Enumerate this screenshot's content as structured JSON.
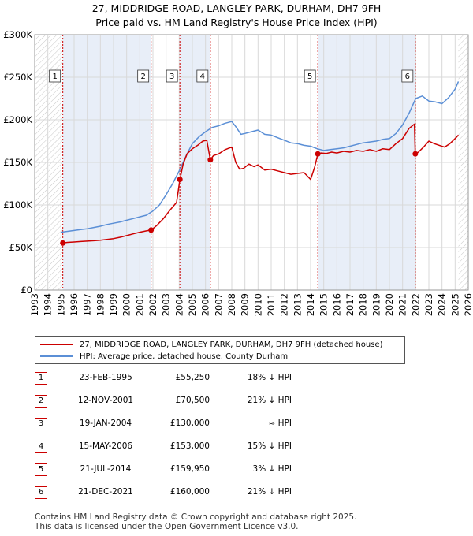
{
  "header": {
    "title_line1": "27, MIDDRIDGE ROAD, LANGLEY PARK, DURHAM, DH7 9FH",
    "title_line2": "Price paid vs. HM Land Registry's House Price Index (HPI)"
  },
  "colors": {
    "price_paid": "#cc0000",
    "hpi": "#5b8fd6",
    "shade": "#e8eef8",
    "marker_line": "#cc0000",
    "grid": "#d9d9d9"
  },
  "chart_data": {
    "type": "line",
    "title": "27, MIDDRIDGE ROAD, LANGLEY PARK, DURHAM, DH7 9FH — Price paid vs. HM Land Registry's House Price Index (HPI)",
    "xlim": [
      1993,
      2026
    ],
    "ylim": [
      0,
      300000
    ],
    "x_ticks": [
      1993,
      1994,
      1995,
      1996,
      1997,
      1998,
      1999,
      2000,
      2001,
      2002,
      2003,
      2004,
      2005,
      2006,
      2007,
      2008,
      2009,
      2010,
      2011,
      2012,
      2013,
      2014,
      2015,
      2016,
      2017,
      2018,
      2019,
      2020,
      2021,
      2022,
      2023,
      2024,
      2025,
      2026
    ],
    "y_ticks": [
      {
        "value": 0,
        "label": "£0"
      },
      {
        "value": 50000,
        "label": "£50K"
      },
      {
        "value": 100000,
        "label": "£100K"
      },
      {
        "value": 150000,
        "label": "£150K"
      },
      {
        "value": 200000,
        "label": "£200K"
      },
      {
        "value": 250000,
        "label": "£250K"
      },
      {
        "value": 300000,
        "label": "£300K"
      }
    ],
    "hatch_ranges": [
      [
        1993,
        1995.14
      ],
      [
        2025.25,
        2026
      ]
    ],
    "series": [
      {
        "name": "27, MIDDRIDGE ROAD, LANGLEY PARK, DURHAM, DH7 9FH (detached house)",
        "color": "#cc0000",
        "x": [
          1995.14,
          1995.5,
          1996,
          1996.5,
          1997,
          1997.5,
          1998,
          1998.5,
          1999,
          1999.5,
          2000,
          2000.5,
          2001,
          2001.5,
          2001.86,
          2002.3,
          2002.8,
          2003.3,
          2003.8,
          2004.05,
          2004.3,
          2004.6,
          2005,
          2005.4,
          2005.8,
          2006.1,
          2006.37,
          2006.6,
          2007,
          2007.5,
          2008,
          2008.3,
          2008.6,
          2008.9,
          2009.3,
          2009.7,
          2010,
          2010.5,
          2011,
          2011.5,
          2012,
          2012.5,
          2013,
          2013.5,
          2014,
          2014.3,
          2014.55,
          2014.8,
          2015.2,
          2015.6,
          2016,
          2016.5,
          2017,
          2017.5,
          2018,
          2018.5,
          2019,
          2019.5,
          2020,
          2020.5,
          2021,
          2021.5,
          2021.9,
          2021.96,
          2022.2,
          2022.6,
          2023,
          2023.4,
          2023.8,
          2024.2,
          2024.6,
          2025,
          2025.25
        ],
        "y": [
          55250,
          56000,
          56500,
          57000,
          57500,
          58000,
          58500,
          59500,
          60500,
          62000,
          64000,
          66000,
          68000,
          69500,
          70500,
          76000,
          84000,
          94000,
          103000,
          130000,
          148000,
          160000,
          166000,
          170000,
          175000,
          176000,
          153000,
          158000,
          160000,
          165000,
          168000,
          150000,
          142000,
          143000,
          148000,
          145000,
          147000,
          141000,
          142000,
          140000,
          138000,
          136000,
          137000,
          138000,
          130000,
          144000,
          159950,
          161000,
          160500,
          162000,
          161000,
          163000,
          162000,
          164000,
          163000,
          165000,
          163000,
          166000,
          165000,
          172000,
          178000,
          190000,
          195000,
          160000,
          162000,
          168000,
          175000,
          172000,
          170000,
          168000,
          172000,
          178000,
          182000
        ]
      },
      {
        "name": "HPI: Average price, detached house, County Durham",
        "color": "#5b8fd6",
        "x": [
          1995,
          1995.5,
          1996,
          1996.5,
          1997,
          1997.5,
          1998,
          1998.5,
          1999,
          1999.5,
          2000,
          2000.5,
          2001,
          2001.5,
          2002,
          2002.5,
          2003,
          2003.5,
          2004,
          2004.5,
          2005,
          2005.5,
          2006,
          2006.5,
          2007,
          2007.5,
          2008,
          2008.3,
          2008.7,
          2009,
          2009.5,
          2010,
          2010.5,
          2011,
          2011.5,
          2012,
          2012.5,
          2013,
          2013.5,
          2014,
          2014.5,
          2015,
          2015.5,
          2016,
          2016.5,
          2017,
          2017.5,
          2018,
          2018.5,
          2019,
          2019.5,
          2020,
          2020.5,
          2021,
          2021.5,
          2022,
          2022.5,
          2023,
          2023.5,
          2024,
          2024.5,
          2025,
          2025.25
        ],
        "y": [
          68000,
          69000,
          70000,
          71000,
          72000,
          73500,
          75000,
          77000,
          78500,
          80000,
          82000,
          84000,
          86000,
          88000,
          93000,
          100000,
          112000,
          125000,
          140000,
          157000,
          172000,
          180000,
          186000,
          191000,
          193000,
          196000,
          198000,
          192000,
          183000,
          184000,
          186000,
          188000,
          183000,
          182000,
          179000,
          176000,
          173000,
          172000,
          170000,
          169000,
          166000,
          164000,
          165000,
          166000,
          167000,
          169000,
          171000,
          173000,
          174000,
          175000,
          177000,
          178000,
          184000,
          194000,
          208000,
          225000,
          228000,
          222000,
          221000,
          219000,
          226000,
          236000,
          245000
        ]
      }
    ],
    "sales": [
      {
        "n": "1",
        "x": 1995.14,
        "y": 55250
      },
      {
        "n": "2",
        "x": 2001.86,
        "y": 70500
      },
      {
        "n": "3",
        "x": 2004.05,
        "y": 130000
      },
      {
        "n": "4",
        "x": 2006.37,
        "y": 153000
      },
      {
        "n": "5",
        "x": 2014.55,
        "y": 159950
      },
      {
        "n": "6",
        "x": 2021.97,
        "y": 160000
      }
    ]
  },
  "legend": {
    "price_label": "27, MIDDRIDGE ROAD, LANGLEY PARK, DURHAM, DH7 9FH (detached house)",
    "hpi_label": "HPI: Average price, detached house, County Durham"
  },
  "sales_table": [
    {
      "num": "1",
      "date": "23-FEB-1995",
      "price": "£55,250",
      "hpi": "18% ↓ HPI"
    },
    {
      "num": "2",
      "date": "12-NOV-2001",
      "price": "£70,500",
      "hpi": "21% ↓ HPI"
    },
    {
      "num": "3",
      "date": "19-JAN-2004",
      "price": "£130,000",
      "hpi": "≈ HPI"
    },
    {
      "num": "4",
      "date": "15-MAY-2006",
      "price": "£153,000",
      "hpi": "15% ↓ HPI"
    },
    {
      "num": "5",
      "date": "21-JUL-2014",
      "price": "£159,950",
      "hpi": "3% ↓ HPI"
    },
    {
      "num": "6",
      "date": "21-DEC-2021",
      "price": "£160,000",
      "hpi": "21% ↓ HPI"
    }
  ],
  "footer": {
    "line1": "Contains HM Land Registry data © Crown copyright and database right 2025.",
    "line2": "This data is licensed under the Open Government Licence v3.0."
  }
}
